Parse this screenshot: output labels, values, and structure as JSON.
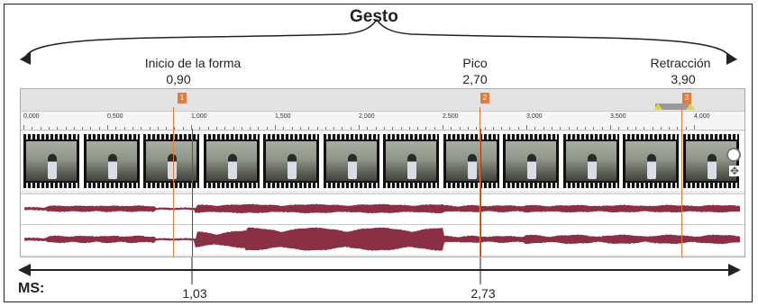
{
  "title": "Gesto",
  "annotations": {
    "inicio": {
      "label": "Inicio de la forma",
      "value": "0,90"
    },
    "pico": {
      "label": "Pico",
      "value": "2,70"
    },
    "retraccion": {
      "label": "Retracción",
      "value": "3,90"
    }
  },
  "ms": {
    "label": "MS:",
    "value1": "1,03",
    "value2": "2,73"
  },
  "markers": [
    "1",
    "2",
    "3"
  ],
  "ruler_ticks": [
    "0,000",
    "0,500",
    "1,000",
    "1,500",
    "2,000",
    "2,500",
    "3,000",
    "3,500",
    "4,000"
  ],
  "colors": {
    "marker": "#e8783a",
    "waveform": "#8b2f45",
    "ink": "#222222"
  },
  "icons": [
    "zoom-icon",
    "move-icon"
  ]
}
